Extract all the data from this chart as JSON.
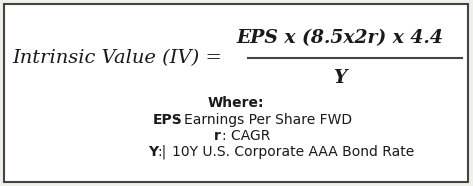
{
  "bg_color": "#f0f0eb",
  "box_color": "#ffffff",
  "border_color": "#444444",
  "formula_lhs": "Intrinsic Value (IV) =",
  "formula_numerator": "EPS x (8.5x2r) x 4.4",
  "formula_denominator": "Y",
  "where_label": "Where:",
  "line1_bold": "EPS",
  "line1_rest": ": Earnings Per Share FWD",
  "line2_bold": "r",
  "line2_rest": ": CAGR",
  "line3_bold": "Y",
  "line3_bar": ":|",
  "line3_rest": "10Y U.S. Corporate AAA Bond Rate",
  "formula_fontsize": 14,
  "numerator_fontsize": 13.5,
  "denominator_fontsize": 13.5,
  "where_fontsize": 10,
  "body_fontsize": 10,
  "lhs_italic_fontsize": 14
}
